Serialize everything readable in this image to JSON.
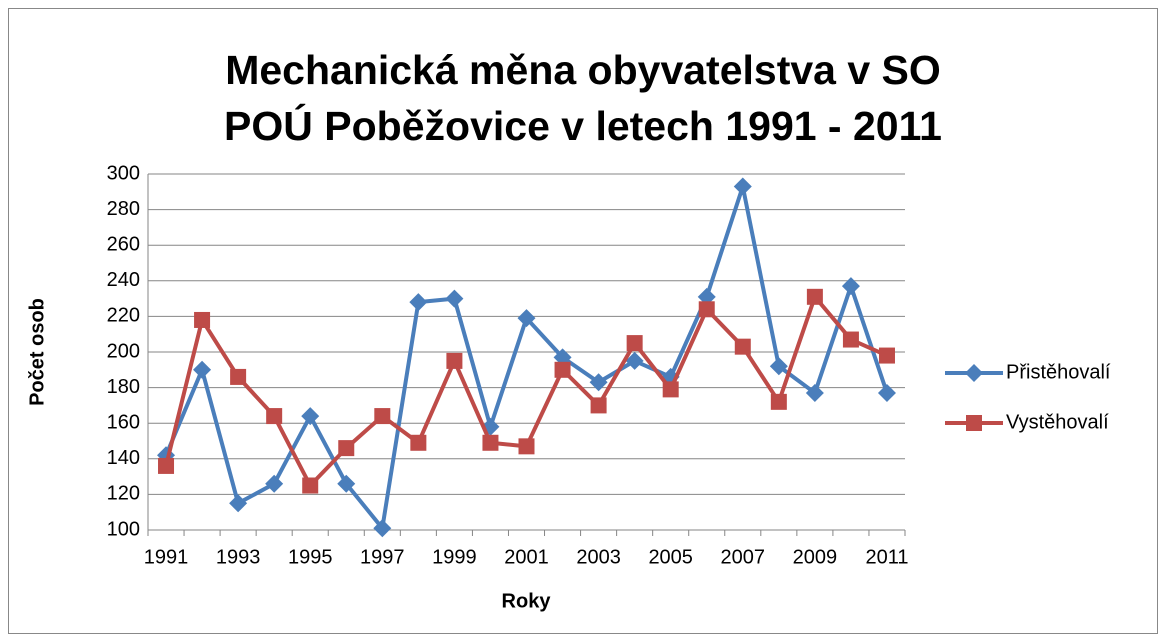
{
  "chart_data": {
    "type": "line",
    "title": [
      "Mechanická měna obyvatelstva v SO",
      "POÚ Poběžovice v letech 1991 - 2011"
    ],
    "x_label": "Roky",
    "y_label": "Počet osob",
    "categories": [
      "1991",
      null,
      "1993",
      null,
      "1995",
      null,
      "1997",
      null,
      "1999",
      null,
      "2001",
      null,
      "2003",
      null,
      "2005",
      null,
      "2007",
      null,
      "2009",
      null,
      "2011"
    ],
    "series": [
      {
        "name": "Přistěhovalí",
        "color": "#4a7ebb",
        "marker": "diamond",
        "values": [
          142,
          190,
          115,
          126,
          164,
          126,
          101,
          228,
          230,
          158,
          219,
          197,
          183,
          195,
          186,
          231,
          293,
          192,
          177,
          237,
          177
        ]
      },
      {
        "name": "Vystěhovalí",
        "color": "#be4b48",
        "marker": "square",
        "values": [
          136,
          218,
          186,
          164,
          125,
          146,
          164,
          149,
          195,
          149,
          147,
          190,
          170,
          205,
          179,
          224,
          203,
          172,
          231,
          207,
          198
        ]
      }
    ],
    "ylim": [
      100,
      300
    ],
    "yticks": [
      100,
      120,
      140,
      160,
      180,
      200,
      220,
      240,
      260,
      280,
      300
    ],
    "grid": true,
    "legend": "right"
  }
}
